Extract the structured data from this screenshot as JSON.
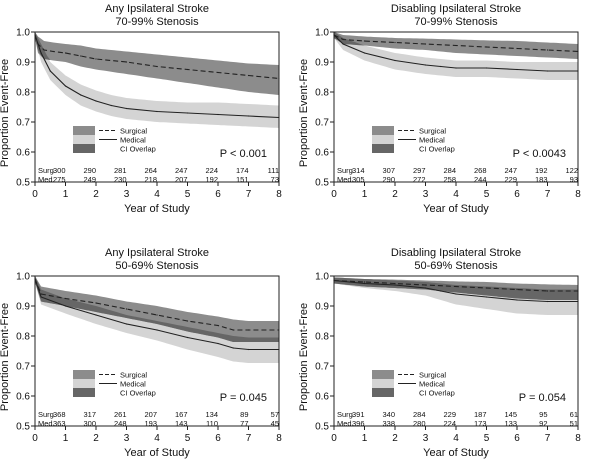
{
  "legend_labels": {
    "surgical": "Surgical",
    "medical": "Medical",
    "overlap": "CI Overlap"
  },
  "colors": {
    "surgical_ci": "#8c8c8c",
    "medical_ci": "#d4d4d4",
    "overlap": "#666666",
    "line": "#222222",
    "frame": "#222222"
  },
  "chart_data": [
    {
      "type": "line",
      "title": "Any Ipsilateral Stroke",
      "subtitle": "70-99% Stenosis",
      "xlabel": "Year of Study",
      "ylabel": "Proportion Event-Free",
      "xlim": [
        0,
        8
      ],
      "ylim": [
        0.5,
        1.0
      ],
      "xticks": [
        "0",
        "1",
        "2",
        "3",
        "4",
        "5",
        "6",
        "7",
        "8"
      ],
      "yticks": [
        "0.5",
        "0.6",
        "0.7",
        "0.8",
        "0.9",
        "1.0"
      ],
      "p_value": "P < 0.001",
      "series": [
        {
          "name": "Surgical",
          "style": "dashed",
          "x": [
            0,
            0.1,
            0.3,
            0.6,
            1,
            1.5,
            2,
            3,
            4,
            5,
            6,
            7,
            8
          ],
          "y": [
            0.99,
            0.96,
            0.94,
            0.935,
            0.93,
            0.92,
            0.91,
            0.9,
            0.885,
            0.875,
            0.865,
            0.855,
            0.845
          ],
          "ci_low": [
            0.98,
            0.93,
            0.91,
            0.905,
            0.9,
            0.885,
            0.875,
            0.86,
            0.845,
            0.83,
            0.815,
            0.8,
            0.79
          ],
          "ci_high": [
            1.0,
            0.985,
            0.97,
            0.965,
            0.96,
            0.955,
            0.945,
            0.935,
            0.925,
            0.915,
            0.905,
            0.895,
            0.89
          ]
        },
        {
          "name": "Medical",
          "style": "solid",
          "x": [
            0,
            0.2,
            0.5,
            1,
            1.5,
            2,
            2.5,
            3,
            4,
            5,
            6,
            7,
            8
          ],
          "y": [
            0.99,
            0.93,
            0.87,
            0.82,
            0.79,
            0.77,
            0.755,
            0.745,
            0.735,
            0.73,
            0.725,
            0.72,
            0.715
          ],
          "ci_low": [
            0.98,
            0.9,
            0.84,
            0.79,
            0.755,
            0.735,
            0.72,
            0.71,
            0.7,
            0.695,
            0.69,
            0.685,
            0.68
          ],
          "ci_high": [
            1.0,
            0.96,
            0.9,
            0.855,
            0.825,
            0.805,
            0.79,
            0.78,
            0.77,
            0.765,
            0.765,
            0.76,
            0.755
          ]
        }
      ],
      "at_risk": [
        {
          "label": "Surg.",
          "values": [
            "300",
            "290",
            "281",
            "264",
            "247",
            "224",
            "174",
            "111"
          ]
        },
        {
          "label": "Med.",
          "values": [
            "275",
            "249",
            "230",
            "218",
            "207",
            "192",
            "151",
            "73"
          ]
        }
      ]
    },
    {
      "type": "line",
      "title": "Disabling Ipsilateral Stroke",
      "subtitle": "70-99% Stenosis",
      "xlabel": "Year of Study",
      "ylabel": "Proportion Event-Free",
      "xlim": [
        0,
        8
      ],
      "ylim": [
        0.5,
        1.0
      ],
      "xticks": [
        "0",
        "1",
        "2",
        "3",
        "4",
        "5",
        "6",
        "7",
        "8"
      ],
      "yticks": [
        "0.5",
        "0.6",
        "0.7",
        "0.8",
        "0.9",
        "1.0"
      ],
      "p_value": "P < 0.0043",
      "series": [
        {
          "name": "Surgical",
          "style": "dashed",
          "x": [
            0,
            0.3,
            1,
            2,
            3,
            4,
            5,
            6,
            7,
            8
          ],
          "y": [
            0.99,
            0.975,
            0.97,
            0.965,
            0.96,
            0.955,
            0.95,
            0.945,
            0.94,
            0.935
          ],
          "ci_low": [
            0.98,
            0.96,
            0.955,
            0.945,
            0.94,
            0.93,
            0.925,
            0.92,
            0.915,
            0.91
          ],
          "ci_high": [
            1.0,
            0.99,
            0.985,
            0.98,
            0.978,
            0.975,
            0.972,
            0.97,
            0.965,
            0.96
          ]
        },
        {
          "name": "Medical",
          "style": "solid",
          "x": [
            0,
            0.3,
            1,
            2,
            3,
            3.5,
            4,
            5,
            6,
            7,
            8
          ],
          "y": [
            0.99,
            0.96,
            0.93,
            0.905,
            0.89,
            0.885,
            0.88,
            0.88,
            0.875,
            0.87,
            0.87
          ],
          "ci_low": [
            0.98,
            0.94,
            0.905,
            0.875,
            0.86,
            0.855,
            0.85,
            0.85,
            0.845,
            0.84,
            0.84
          ],
          "ci_high": [
            1.0,
            0.98,
            0.955,
            0.93,
            0.915,
            0.91,
            0.905,
            0.905,
            0.9,
            0.9,
            0.9
          ]
        }
      ],
      "at_risk": [
        {
          "label": "Surg.",
          "values": [
            "314",
            "307",
            "297",
            "284",
            "268",
            "247",
            "192",
            "122"
          ]
        },
        {
          "label": "Med.",
          "values": [
            "305",
            "290",
            "272",
            "258",
            "244",
            "229",
            "183",
            "93"
          ]
        }
      ]
    },
    {
      "type": "line",
      "title": "Any Ipsilateral Stroke",
      "subtitle": "50-69% Stenosis",
      "xlabel": "Year of Study",
      "ylabel": "Proportion Event-Free",
      "xlim": [
        0,
        8
      ],
      "ylim": [
        0.5,
        1.0
      ],
      "xticks": [
        "0",
        "1",
        "2",
        "3",
        "4",
        "5",
        "6",
        "7",
        "8"
      ],
      "yticks": [
        "0.5",
        "0.6",
        "0.7",
        "0.8",
        "0.9",
        "1.0"
      ],
      "p_value": "P = 0.045",
      "series": [
        {
          "name": "Surgical",
          "style": "dashed",
          "x": [
            0,
            0.2,
            1,
            2,
            3,
            4,
            5,
            6,
            6.5,
            7,
            8
          ],
          "y": [
            0.99,
            0.94,
            0.925,
            0.91,
            0.89,
            0.87,
            0.85,
            0.835,
            0.82,
            0.82,
            0.82
          ],
          "ci_low": [
            0.98,
            0.915,
            0.9,
            0.88,
            0.86,
            0.84,
            0.815,
            0.795,
            0.78,
            0.78,
            0.78
          ],
          "ci_high": [
            1.0,
            0.965,
            0.95,
            0.935,
            0.915,
            0.9,
            0.88,
            0.865,
            0.855,
            0.85,
            0.85
          ]
        },
        {
          "name": "Medical",
          "style": "solid",
          "x": [
            0,
            0.2,
            1,
            2,
            3,
            4,
            5,
            6,
            6.5,
            7,
            8
          ],
          "y": [
            0.99,
            0.93,
            0.9,
            0.87,
            0.84,
            0.82,
            0.795,
            0.775,
            0.76,
            0.755,
            0.755
          ],
          "ci_low": [
            0.98,
            0.905,
            0.875,
            0.84,
            0.81,
            0.785,
            0.755,
            0.73,
            0.715,
            0.71,
            0.71
          ],
          "ci_high": [
            1.0,
            0.955,
            0.925,
            0.9,
            0.87,
            0.85,
            0.83,
            0.81,
            0.8,
            0.795,
            0.795
          ]
        }
      ],
      "at_risk": [
        {
          "label": "Surg.",
          "values": [
            "368",
            "317",
            "261",
            "207",
            "167",
            "134",
            "89",
            "57"
          ]
        },
        {
          "label": "Med.",
          "values": [
            "363",
            "300",
            "248",
            "193",
            "143",
            "110",
            "77",
            "45"
          ]
        }
      ]
    },
    {
      "type": "line",
      "title": "Disabling Ipsilateral Stroke",
      "subtitle": "50-69% Stenosis",
      "xlabel": "Year of Study",
      "ylabel": "Proportion Event-Free",
      "xlim": [
        0,
        8
      ],
      "ylim": [
        0.5,
        1.0
      ],
      "xticks": [
        "0",
        "1",
        "2",
        "3",
        "4",
        "5",
        "6",
        "7",
        "8"
      ],
      "yticks": [
        "0.5",
        "0.6",
        "0.7",
        "0.8",
        "0.9",
        "1.0"
      ],
      "p_value": "P = 0.054",
      "series": [
        {
          "name": "Surgical",
          "style": "dashed",
          "x": [
            0,
            1,
            2,
            3,
            4,
            5,
            6,
            7,
            8
          ],
          "y": [
            0.985,
            0.98,
            0.975,
            0.97,
            0.965,
            0.96,
            0.955,
            0.95,
            0.95
          ],
          "ci_low": [
            0.975,
            0.965,
            0.96,
            0.955,
            0.945,
            0.935,
            0.925,
            0.92,
            0.92
          ],
          "ci_high": [
            0.995,
            0.99,
            0.988,
            0.985,
            0.982,
            0.98,
            0.975,
            0.972,
            0.97
          ]
        },
        {
          "name": "Medical",
          "style": "solid",
          "x": [
            0,
            1,
            2,
            3,
            3.5,
            4,
            5,
            6,
            7,
            8
          ],
          "y": [
            0.985,
            0.975,
            0.97,
            0.96,
            0.95,
            0.94,
            0.93,
            0.92,
            0.915,
            0.915
          ],
          "ci_low": [
            0.975,
            0.96,
            0.95,
            0.935,
            0.92,
            0.905,
            0.89,
            0.875,
            0.87,
            0.87
          ],
          "ci_high": [
            0.995,
            0.99,
            0.985,
            0.98,
            0.975,
            0.97,
            0.965,
            0.96,
            0.955,
            0.955
          ]
        }
      ],
      "at_risk": [
        {
          "label": "Surg.",
          "values": [
            "391",
            "340",
            "284",
            "229",
            "187",
            "145",
            "95",
            "61"
          ]
        },
        {
          "label": "Med.",
          "values": [
            "396",
            "338",
            "280",
            "224",
            "173",
            "133",
            "92",
            "51"
          ]
        }
      ]
    }
  ]
}
